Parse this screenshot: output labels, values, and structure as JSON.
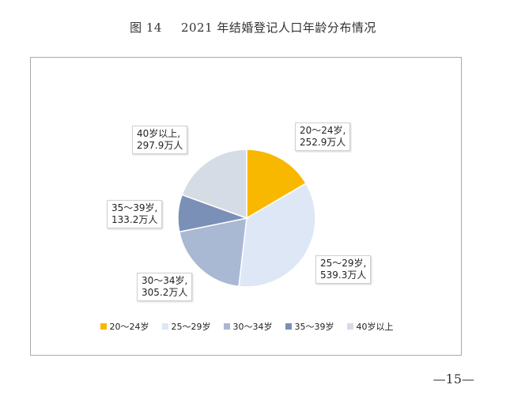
{
  "figure": {
    "number": "图 14",
    "title": "2021 年结婚登记人口年龄分布情况"
  },
  "chart_data": {
    "type": "pie",
    "unit": "万人",
    "start_angle_deg": 0,
    "direction": "clockwise",
    "legend_position": "bottom",
    "slices": [
      {
        "label": "20～24岁",
        "value": 252.9,
        "color": "#f9b800",
        "callout_name": "20～24岁,",
        "callout_value": "252.9万人"
      },
      {
        "label": "25～29岁",
        "value": 539.3,
        "color": "#dde7f5",
        "callout_name": "25～29岁,",
        "callout_value": "539.3万人"
      },
      {
        "label": "30～34岁",
        "value": 305.2,
        "color": "#a9b8d3",
        "callout_name": "30～34岁,",
        "callout_value": "305.2万人"
      },
      {
        "label": "35～39岁",
        "value": 133.2,
        "color": "#7b90b6",
        "callout_name": "35～39岁,",
        "callout_value": "133.2万人"
      },
      {
        "label": "40岁以上",
        "value": 297.9,
        "color": "#d6dce6",
        "callout_name": "40岁以上,",
        "callout_value": "297.9万人"
      }
    ]
  },
  "page": {
    "number": "—15—"
  }
}
